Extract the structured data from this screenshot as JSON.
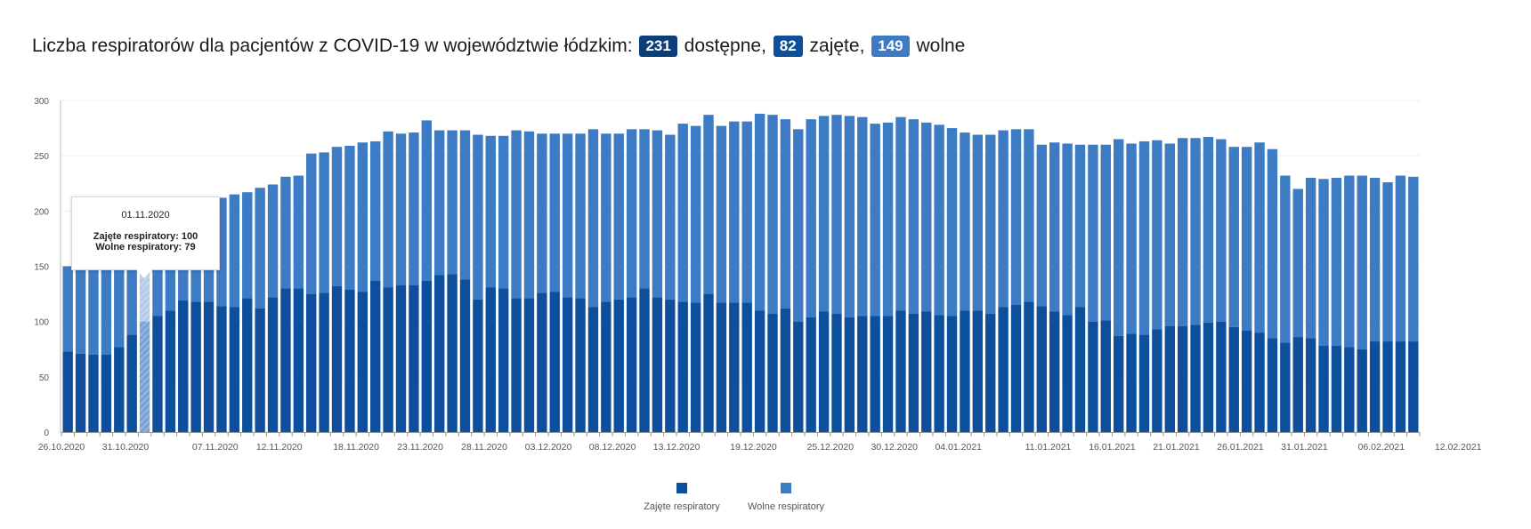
{
  "header": {
    "prefix": "Liczba respiratorów dla pacjentów z COVID-19 w województwie łódzkim:",
    "available_value": "231",
    "available_label": "dostępne,",
    "occupied_value": "82",
    "occupied_label": "zajęte,",
    "free_value": "149",
    "free_label": "wolne"
  },
  "colors": {
    "occupied": "#0d4f9c",
    "free": "#3d7cc5",
    "badge_available": "#0b3f7a",
    "badge_occupied": "#0d4f9c",
    "badge_free": "#3d7cc5",
    "hover_occupied": "#8db3dc"
  },
  "tooltip": {
    "date": "01.11.2020",
    "occupied_line": "Zajęte respiratory: 100",
    "free_line": "Wolne respiratory: 79"
  },
  "legend": {
    "occupied": "Zajęte respiratory",
    "free": "Wolne respiratory"
  },
  "chart_data": {
    "type": "bar",
    "stacked": true,
    "title": "Liczba respiratorów dla pacjentów z COVID-19 w województwie łódzkim",
    "xlabel": "",
    "ylabel": "",
    "ylim": [
      0,
      300
    ],
    "yticks": [
      0,
      50,
      100,
      150,
      200,
      250,
      300
    ],
    "grid": true,
    "legend_position": "bottom-center",
    "start_date": "2020-10-26",
    "highlight_index": 6,
    "x_tick_labels": [
      "26.10.2020",
      "31.10.2020",
      "07.11.2020",
      "12.11.2020",
      "18.11.2020",
      "23.11.2020",
      "28.11.2020",
      "03.12.2020",
      "08.12.2020",
      "13.12.2020",
      "19.12.2020",
      "25.12.2020",
      "30.12.2020",
      "04.01.2021",
      "11.01.2021",
      "16.01.2021",
      "21.01.2021",
      "26.01.2021",
      "31.01.2021",
      "06.02.2021",
      "12.02.2021"
    ],
    "series": [
      {
        "name": "Zajęte respiratory",
        "values": [
          73,
          71,
          70,
          70,
          77,
          88,
          100,
          105,
          110,
          119,
          118,
          118,
          114,
          113,
          121,
          112,
          122,
          130,
          130,
          125,
          126,
          132,
          129,
          127,
          137,
          131,
          133,
          133,
          137,
          142,
          143,
          138,
          120,
          131,
          130,
          121,
          121,
          126,
          127,
          122,
          121,
          113,
          118,
          120,
          122,
          130,
          122,
          120,
          118,
          117,
          125,
          117,
          117,
          117,
          110,
          107,
          112,
          100,
          104,
          109,
          107,
          104,
          105,
          105,
          105,
          110,
          107,
          109,
          106,
          105,
          110,
          110,
          107,
          113,
          115,
          118,
          114,
          109,
          106,
          113,
          100,
          101,
          87,
          89,
          88,
          93,
          96,
          96,
          97,
          99,
          100,
          95,
          92,
          90,
          85,
          81,
          86,
          85,
          78,
          78,
          77,
          75,
          82,
          82,
          82,
          82
        ],
        "color": "#0d4f9c"
      },
      {
        "name": "Wolne respiratory",
        "values": [
          77,
          79,
          78,
          80,
          85,
          85,
          79,
          81,
          86,
          88,
          91,
          93,
          98,
          102,
          96,
          109,
          102,
          101,
          102,
          127,
          127,
          126,
          130,
          135,
          126,
          141,
          137,
          138,
          145,
          131,
          130,
          135,
          149,
          137,
          138,
          152,
          151,
          144,
          143,
          148,
          149,
          161,
          152,
          150,
          152,
          144,
          151,
          149,
          161,
          160,
          162,
          160,
          164,
          164,
          178,
          180,
          171,
          174,
          179,
          177,
          180,
          182,
          180,
          174,
          175,
          175,
          176,
          171,
          172,
          170,
          161,
          159,
          162,
          160,
          159,
          156,
          146,
          153,
          155,
          147,
          160,
          159,
          178,
          172,
          175,
          171,
          165,
          170,
          169,
          168,
          165,
          163,
          166,
          172,
          171,
          151,
          134,
          145,
          151,
          152,
          155,
          157,
          148,
          144,
          150,
          149
        ]
      }
    ]
  }
}
